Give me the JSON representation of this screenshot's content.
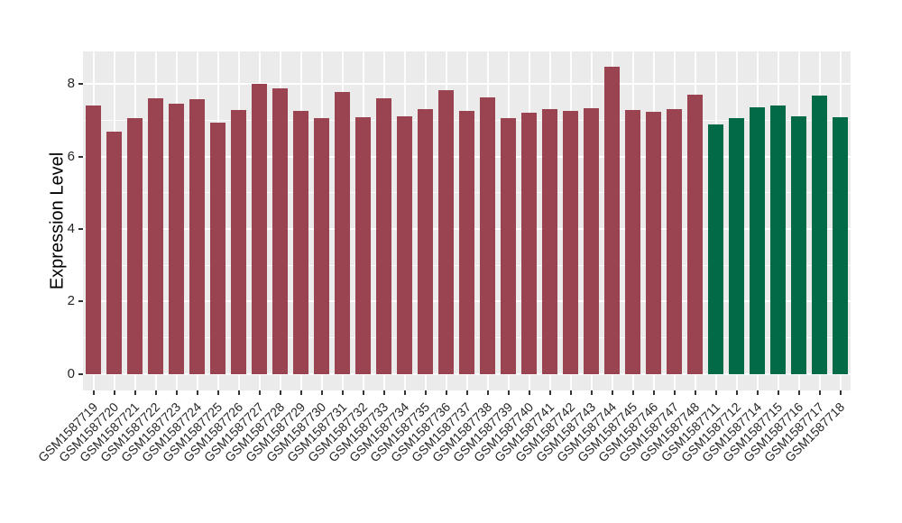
{
  "figure": {
    "ylabel": "Expression Level",
    "background_color": "#FFFFFF",
    "panel_background_color": "#EBEBEB",
    "grid_color": "#FFFFFF",
    "tick_color": "#333333",
    "axis_text_color": "#262626"
  },
  "chart_data": {
    "type": "bar",
    "title": "",
    "xlabel": "",
    "ylabel": "Expression Level",
    "legend": false,
    "grid": true,
    "ylim": [
      -0.45,
      8.9
    ],
    "yticks": [
      0,
      2,
      4,
      6,
      8
    ],
    "yticks_minor": [
      1,
      3,
      5,
      7
    ],
    "x_label_rotation_deg": 45,
    "categories": [
      "GSM1587719",
      "GSM1587720",
      "GSM1587721",
      "GSM1587722",
      "GSM1587723",
      "GSM1587724",
      "GSM1587725",
      "GSM1587726",
      "GSM1587727",
      "GSM1587728",
      "GSM1587729",
      "GSM1587730",
      "GSM1587731",
      "GSM1587732",
      "GSM1587733",
      "GSM1587734",
      "GSM1587735",
      "GSM1587736",
      "GSM1587737",
      "GSM1587738",
      "GSM1587739",
      "GSM1587740",
      "GSM1587741",
      "GSM1587742",
      "GSM1587743",
      "GSM1587744",
      "GSM1587745",
      "GSM1587746",
      "GSM1587747",
      "GSM1587748",
      "GSM1587711",
      "GSM1587712",
      "GSM1587714",
      "GSM1587715",
      "GSM1587716",
      "GSM1587717",
      "GSM1587718"
    ],
    "values": [
      7.4,
      6.69,
      7.06,
      7.6,
      7.47,
      7.58,
      6.93,
      7.29,
      8.01,
      7.87,
      7.26,
      7.06,
      7.79,
      7.08,
      7.6,
      7.11,
      7.3,
      7.82,
      7.25,
      7.63,
      7.07,
      7.2,
      7.3,
      7.25,
      7.33,
      8.47,
      7.29,
      7.23,
      7.31,
      7.7,
      6.89,
      7.06,
      7.36,
      7.41,
      7.11,
      7.68,
      7.09
    ],
    "groups": [
      "A",
      "A",
      "A",
      "A",
      "A",
      "A",
      "A",
      "A",
      "A",
      "A",
      "A",
      "A",
      "A",
      "A",
      "A",
      "A",
      "A",
      "A",
      "A",
      "A",
      "A",
      "A",
      "A",
      "A",
      "A",
      "A",
      "A",
      "A",
      "A",
      "A",
      "B",
      "B",
      "B",
      "B",
      "B",
      "B",
      "B"
    ],
    "palette": {
      "A": "#9A4351",
      "B": "#026A47"
    }
  }
}
